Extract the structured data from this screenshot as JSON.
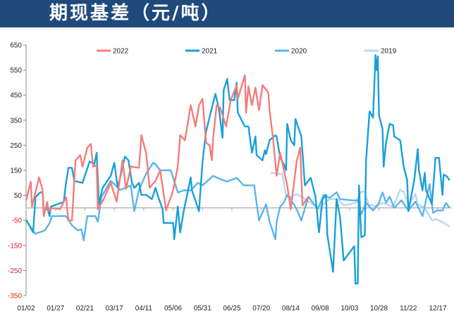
{
  "header": {
    "title": "期现基差（元/吨）",
    "background": "#214a7c"
  },
  "chart_data": {
    "type": "line",
    "title": "",
    "xlabel": "",
    "ylabel": "",
    "ylim": [
      -350,
      650
    ],
    "yticks": [
      650,
      550,
      450,
      350,
      250,
      150,
      50,
      -50,
      -150,
      -250,
      -350
    ],
    "negative_tick_color": "#e02020",
    "xticks": [
      "01/02",
      "01/27",
      "02/21",
      "03/17",
      "04/11",
      "05/06",
      "05/31",
      "06/25",
      "07/20",
      "08/14",
      "09/08",
      "10/03",
      "10/28",
      "11/22",
      "12/17"
    ],
    "grid": false,
    "legend_position": "top",
    "series": [
      {
        "name": "2022",
        "color": "#f47c7c",
        "points": [
          [
            "01/02",
            30
          ],
          [
            "01/06",
            105
          ],
          [
            "01/07",
            5
          ],
          [
            "01/13",
            122
          ],
          [
            "01/16",
            72
          ],
          [
            "01/17",
            -33
          ],
          [
            "01/20",
            24
          ],
          [
            "01/21",
            -13
          ],
          [
            "01/23",
            0
          ],
          [
            "01/31",
            -5
          ],
          [
            "02/05",
            43
          ],
          [
            "02/07",
            -50
          ],
          [
            "02/10",
            -50
          ],
          [
            "02/13",
            190
          ],
          [
            "02/17",
            210
          ],
          [
            "02/19",
            165
          ],
          [
            "02/23",
            240
          ],
          [
            "02/26",
            255
          ],
          [
            "02/28",
            165
          ],
          [
            "03/02",
            170
          ],
          [
            "03/03",
            -5
          ],
          [
            "03/08",
            35
          ],
          [
            "03/14",
            100
          ],
          [
            "03/19",
            25
          ],
          [
            "03/24",
            190
          ],
          [
            "03/27",
            75
          ],
          [
            "03/31",
            165
          ],
          [
            "04/07",
            160
          ],
          [
            "04/09",
            290
          ],
          [
            "04/13",
            220
          ],
          [
            "04/16",
            80
          ],
          [
            "04/21",
            108
          ],
          [
            "04/25",
            150
          ],
          [
            "04/30",
            -10
          ],
          [
            "05/06",
            70
          ],
          [
            "05/10",
            165
          ],
          [
            "05/12",
            290
          ],
          [
            "05/16",
            270
          ],
          [
            "05/21",
            410
          ],
          [
            "05/25",
            325
          ],
          [
            "05/28",
            410
          ],
          [
            "05/31",
            435
          ],
          [
            "06/03",
            260
          ],
          [
            "06/06",
            250
          ],
          [
            "06/08",
            190
          ],
          [
            "06/09",
            275
          ],
          [
            "06/12",
            410
          ],
          [
            "06/15",
            400
          ],
          [
            "06/20",
            325
          ],
          [
            "06/24",
            430
          ],
          [
            "06/29",
            490
          ],
          [
            "06/30",
            435
          ],
          [
            "07/06",
            530
          ],
          [
            "07/07",
            380
          ],
          [
            "07/09",
            485
          ],
          [
            "07/12",
            410
          ],
          [
            "07/15",
            480
          ],
          [
            "07/18",
            390
          ],
          [
            "07/21",
            490
          ],
          [
            "07/26",
            460
          ],
          [
            "07/27",
            390
          ],
          [
            "07/30",
            275
          ],
          [
            "08/02",
            128
          ],
          [
            "08/05",
            220
          ],
          [
            "08/11",
            90
          ],
          [
            "08/14",
            -5
          ],
          [
            "08/19",
            185
          ],
          [
            "08/22",
            240
          ],
          [
            "08/24",
            10
          ],
          [
            "08/29",
            45
          ]
        ]
      },
      {
        "name": "2021",
        "color": "#1a9fd9",
        "points": [
          [
            "01/02",
            -47
          ],
          [
            "01/08",
            -98
          ],
          [
            "01/10",
            43
          ],
          [
            "01/14",
            62
          ],
          [
            "01/16",
            62
          ],
          [
            "01/17",
            -13
          ],
          [
            "01/20",
            0
          ],
          [
            "01/22",
            -33
          ],
          [
            "01/23",
            5
          ],
          [
            "02/03",
            24
          ],
          [
            "02/05",
            100
          ],
          [
            "02/07",
            160
          ],
          [
            "02/10",
            160
          ],
          [
            "02/12",
            108
          ],
          [
            "02/19",
            100
          ],
          [
            "02/25",
            185
          ],
          [
            "02/29",
            175
          ],
          [
            "03/02",
            220
          ],
          [
            "03/04",
            15
          ],
          [
            "03/07",
            80
          ],
          [
            "03/14",
            128
          ],
          [
            "03/17",
            180
          ],
          [
            "03/20",
            80
          ],
          [
            "03/26",
            205
          ],
          [
            "03/29",
            190
          ],
          [
            "04/01",
            100
          ],
          [
            "04/03",
            80
          ],
          [
            "04/07",
            100
          ],
          [
            "04/09",
            52
          ],
          [
            "04/13",
            52
          ],
          [
            "04/18",
            35
          ],
          [
            "04/21",
            80
          ],
          [
            "04/24",
            35
          ],
          [
            "04/27",
            -5
          ],
          [
            "04/28",
            -60
          ],
          [
            "05/06",
            -60
          ],
          [
            "05/07",
            -125
          ],
          [
            "05/10",
            5
          ],
          [
            "05/12",
            -98
          ],
          [
            "05/15",
            -13
          ],
          [
            "05/21",
            122
          ],
          [
            "05/22",
            70
          ],
          [
            "05/28",
            -13
          ],
          [
            "05/31",
            185
          ],
          [
            "06/03",
            305
          ],
          [
            "06/08",
            400
          ],
          [
            "06/11",
            455
          ],
          [
            "06/14",
            395
          ],
          [
            "06/17",
            280
          ],
          [
            "06/18",
            470
          ],
          [
            "06/21",
            515
          ],
          [
            "06/23",
            430
          ],
          [
            "06/27",
            430
          ],
          [
            "06/29",
            500
          ],
          [
            "06/30",
            380
          ],
          [
            "07/06",
            325
          ],
          [
            "07/09",
            325
          ],
          [
            "07/12",
            220
          ],
          [
            "07/15",
            285
          ],
          [
            "07/16",
            210
          ],
          [
            "07/21",
            190
          ],
          [
            "07/23",
            230
          ],
          [
            "07/24",
            215
          ],
          [
            "07/27",
            270
          ],
          [
            "08/01",
            290
          ],
          [
            "08/02",
            285
          ],
          [
            "08/05",
            200
          ],
          [
            "08/08",
            175
          ],
          [
            "08/10",
            150
          ],
          [
            "08/11",
            335
          ],
          [
            "08/14",
            270
          ],
          [
            "08/17",
            250
          ],
          [
            "08/18",
            355
          ],
          [
            "08/23",
            285
          ],
          [
            "08/26",
            90
          ],
          [
            "08/31",
            120
          ],
          [
            "09/04",
            45
          ],
          [
            "09/07",
            -98
          ],
          [
            "09/10",
            35
          ],
          [
            "09/13",
            52
          ],
          [
            "09/14",
            -105
          ],
          [
            "09/19",
            -255
          ],
          [
            "09/20",
            -153
          ],
          [
            "09/22",
            35
          ],
          [
            "09/25",
            -40
          ],
          [
            "09/28",
            -210
          ],
          [
            "10/07",
            -153
          ],
          [
            "10/08",
            -302
          ],
          [
            "10/10",
            -302
          ],
          [
            "10/11",
            90
          ],
          [
            "10/13",
            -117
          ],
          [
            "10/16",
            -110
          ],
          [
            "10/17",
            185
          ],
          [
            "10/20",
            385
          ],
          [
            "10/23",
            360
          ],
          [
            "10/25",
            610
          ],
          [
            "10/26",
            550
          ],
          [
            "10/27",
            605
          ],
          [
            "10/28",
            370
          ],
          [
            "10/31",
            315
          ],
          [
            "11/01",
            165
          ],
          [
            "11/03",
            260
          ],
          [
            "11/06",
            335
          ],
          [
            "11/09",
            330
          ],
          [
            "11/10",
            285
          ],
          [
            "11/15",
            270
          ],
          [
            "11/18",
            165
          ],
          [
            "11/21",
            110
          ],
          [
            "11/22",
            -13
          ],
          [
            "11/27",
            110
          ],
          [
            "11/30",
            235
          ],
          [
            "12/01",
            150
          ],
          [
            "12/04",
            70
          ],
          [
            "12/06",
            140
          ],
          [
            "12/07",
            70
          ],
          [
            "12/12",
            15
          ],
          [
            "12/15",
            200
          ],
          [
            "12/18",
            200
          ],
          [
            "12/21",
            52
          ],
          [
            "12/22",
            133
          ],
          [
            "12/25",
            125
          ],
          [
            "12/27",
            110
          ]
        ]
      },
      {
        "name": "2020",
        "color": "#5bb4ea",
        "points": [
          [
            "01/02",
            -50
          ],
          [
            "01/06",
            -78
          ],
          [
            "01/10",
            -103
          ],
          [
            "01/18",
            -90
          ],
          [
            "01/22",
            -60
          ],
          [
            "01/24",
            -33
          ],
          [
            "02/05",
            -33
          ],
          [
            "02/10",
            -70
          ],
          [
            "02/15",
            -90
          ],
          [
            "02/18",
            -85
          ],
          [
            "02/20",
            -130
          ],
          [
            "02/23",
            -33
          ],
          [
            "03/01",
            -33
          ],
          [
            "03/03",
            -55
          ],
          [
            "03/06",
            43
          ],
          [
            "03/14",
            108
          ],
          [
            "03/22",
            72
          ],
          [
            "03/31",
            90
          ],
          [
            "04/03",
            -13
          ],
          [
            "04/07",
            72
          ],
          [
            "04/13",
            136
          ],
          [
            "04/19",
            180
          ],
          [
            "04/21",
            175
          ],
          [
            "04/25",
            150
          ],
          [
            "05/04",
            150
          ],
          [
            "05/10",
            62
          ],
          [
            "05/15",
            70
          ],
          [
            "05/21",
            70
          ],
          [
            "05/27",
            100
          ],
          [
            "05/31",
            90
          ],
          [
            "06/09",
            128
          ],
          [
            "06/15",
            115
          ],
          [
            "06/21",
            105
          ],
          [
            "06/29",
            120
          ],
          [
            "07/05",
            90
          ],
          [
            "07/14",
            90
          ],
          [
            "07/15",
            52
          ],
          [
            "07/18",
            -50
          ],
          [
            "07/24",
            15
          ],
          [
            "07/27",
            -55
          ],
          [
            "08/01",
            -125
          ],
          [
            "08/02",
            -55
          ],
          [
            "08/05",
            5
          ],
          [
            "08/08",
            20
          ],
          [
            "08/11",
            52
          ],
          [
            "08/14",
            35
          ],
          [
            "08/19",
            -5
          ],
          [
            "08/23",
            -50
          ],
          [
            "08/29",
            45
          ],
          [
            "09/06",
            -5
          ],
          [
            "09/11",
            52
          ],
          [
            "09/16",
            40
          ],
          [
            "09/22",
            62
          ],
          [
            "09/25",
            35
          ],
          [
            "10/05",
            30
          ],
          [
            "10/10",
            30
          ],
          [
            "10/13",
            -25
          ],
          [
            "10/17",
            20
          ],
          [
            "10/23",
            -10
          ],
          [
            "10/28",
            20
          ],
          [
            "10/31",
            62
          ],
          [
            "11/03",
            20
          ],
          [
            "11/06",
            45
          ],
          [
            "11/10",
            0
          ],
          [
            "11/16",
            30
          ],
          [
            "11/22",
            -10
          ],
          [
            "11/28",
            25
          ],
          [
            "12/04",
            -33
          ],
          [
            "12/10",
            95
          ],
          [
            "12/13",
            -20
          ],
          [
            "12/16",
            -10
          ],
          [
            "12/21",
            -10
          ],
          [
            "12/24",
            20
          ],
          [
            "12/27",
            0
          ]
        ]
      },
      {
        "name": "2019",
        "color": "#b7d8f0",
        "points": [
          [
            "07/28",
            140
          ],
          [
            "08/07",
            135
          ],
          [
            "08/10",
            45
          ],
          [
            "08/14",
            45
          ],
          [
            "08/19",
            55
          ],
          [
            "08/25",
            40
          ],
          [
            "08/31",
            20
          ],
          [
            "09/07",
            0
          ],
          [
            "09/16",
            35
          ],
          [
            "09/23",
            35
          ],
          [
            "09/28",
            10
          ],
          [
            "10/08",
            20
          ],
          [
            "10/13",
            65
          ],
          [
            "10/16",
            65
          ],
          [
            "10/19",
            15
          ],
          [
            "10/26",
            5
          ],
          [
            "10/31",
            20
          ],
          [
            "11/09",
            5
          ],
          [
            "11/15",
            72
          ],
          [
            "11/18",
            65
          ],
          [
            "11/22",
            15
          ],
          [
            "11/28",
            55
          ],
          [
            "11/30",
            15
          ],
          [
            "12/06",
            0
          ],
          [
            "12/12",
            -50
          ],
          [
            "12/16",
            -45
          ],
          [
            "12/22",
            -60
          ],
          [
            "12/27",
            -75
          ]
        ]
      }
    ]
  }
}
